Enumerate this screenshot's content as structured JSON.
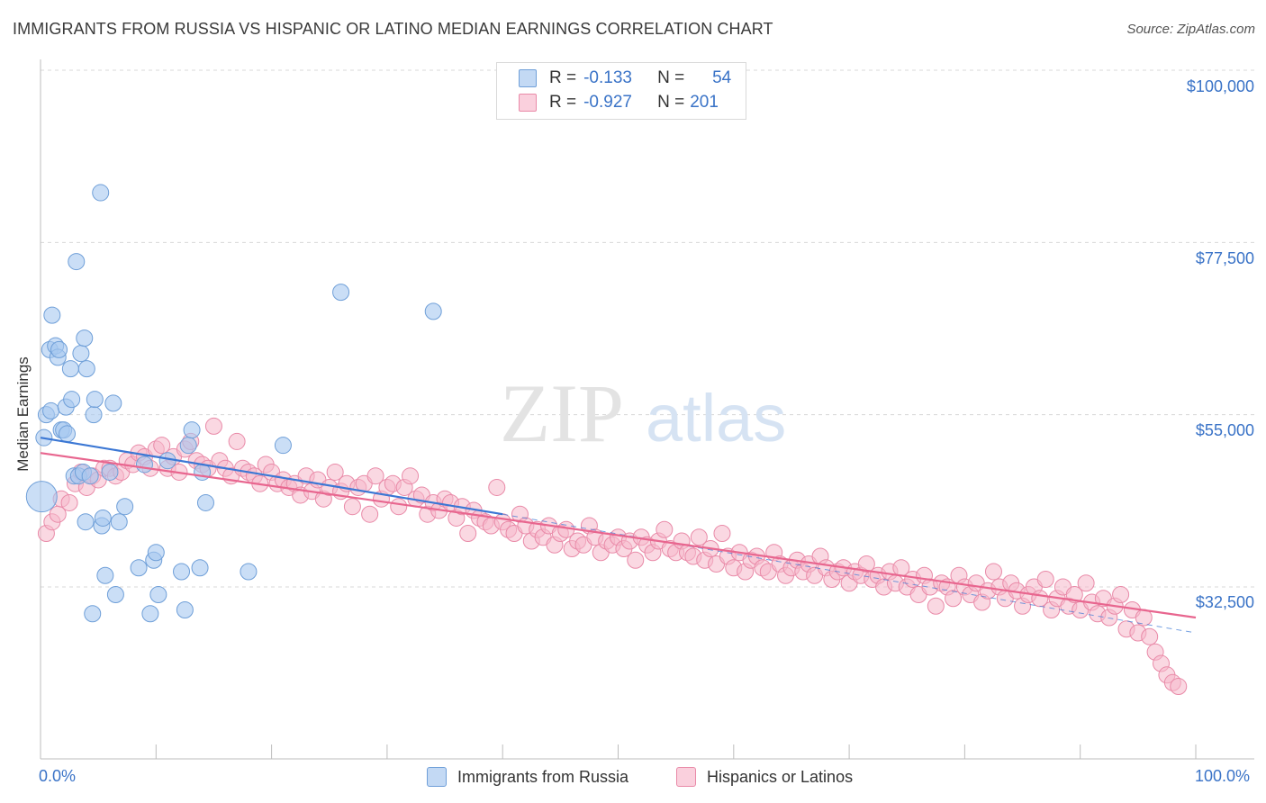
{
  "title": "IMMIGRANTS FROM RUSSIA VS HISPANIC OR LATINO MEDIAN EARNINGS CORRELATION CHART",
  "source": "Source: ZipAtlas.com",
  "watermark": {
    "zip": "ZIP",
    "atlas": "atlas"
  },
  "legend": {
    "rows": [
      {
        "r_label": "R =",
        "r_value": "-0.133",
        "n_label": "N =",
        "n_value": "54",
        "color": "#a7c8f0"
      },
      {
        "r_label": "R =",
        "r_value": "-0.927",
        "n_label": "N =",
        "n_value": "201",
        "color": "#f5b8cb"
      }
    ]
  },
  "colors": {
    "russia_fill": "#a7c8f0",
    "russia_stroke": "#6f9fd8",
    "russia_line": "#3b77d4",
    "hispanic_fill": "#f5b8cb",
    "hispanic_stroke": "#e98aa8",
    "hispanic_line": "#e8668f",
    "axis_text": "#3a73c7",
    "grid": "#d8d8d8"
  },
  "chart_data": {
    "type": "scatter",
    "title": "IMMIGRANTS FROM RUSSIA VS HISPANIC OR LATINO MEDIAN EARNINGS CORRELATION CHART",
    "xlabel": "",
    "ylabel": "Median Earnings",
    "xlim": [
      0,
      100
    ],
    "ylim": [
      12000,
      104000
    ],
    "x_tick_labels": [
      "0.0%",
      "100.0%"
    ],
    "y_ticks": [
      32500,
      55000,
      77500,
      100000
    ],
    "y_tick_labels": [
      "$32,500",
      "$55,000",
      "$77,500",
      "$100,000"
    ],
    "grid": true,
    "legend_position": "top-center",
    "series": [
      {
        "name": "Immigrants from Russia",
        "trend": {
          "x": [
            0,
            40
          ],
          "y": [
            52000,
            42000
          ],
          "dashed_extension_to": [
            100,
            26500
          ]
        },
        "points": [
          [
            0.1,
            44.3
          ],
          [
            0.3,
            52.0
          ],
          [
            0.5,
            55.0
          ],
          [
            0.8,
            63.5
          ],
          [
            0.9,
            55.5
          ],
          [
            1.0,
            68.0
          ],
          [
            1.3,
            64.0
          ],
          [
            1.5,
            62.5
          ],
          [
            1.6,
            63.5
          ],
          [
            1.8,
            53.0
          ],
          [
            2.0,
            53.0
          ],
          [
            2.2,
            56.0
          ],
          [
            2.3,
            52.5
          ],
          [
            2.6,
            61.0
          ],
          [
            2.7,
            57.0
          ],
          [
            2.9,
            47.0
          ],
          [
            3.1,
            75.0
          ],
          [
            3.3,
            47.0
          ],
          [
            3.5,
            63.0
          ],
          [
            3.7,
            47.5
          ],
          [
            3.8,
            65.0
          ],
          [
            3.9,
            41.0
          ],
          [
            4.0,
            61.0
          ],
          [
            4.3,
            47.0
          ],
          [
            4.5,
            29.0
          ],
          [
            4.6,
            55.0
          ],
          [
            4.7,
            57.0
          ],
          [
            5.2,
            84.0
          ],
          [
            5.3,
            40.5
          ],
          [
            5.4,
            41.5
          ],
          [
            5.6,
            34.0
          ],
          [
            6.3,
            56.5
          ],
          [
            6.5,
            31.5
          ],
          [
            6.8,
            41.0
          ],
          [
            7.3,
            43.0
          ],
          [
            8.5,
            35.0
          ],
          [
            9.0,
            48.5
          ],
          [
            9.5,
            29.0
          ],
          [
            9.8,
            36.0
          ],
          [
            10.0,
            37.0
          ],
          [
            10.2,
            31.5
          ],
          [
            12.2,
            34.5
          ],
          [
            12.5,
            29.5
          ],
          [
            12.8,
            51.0
          ],
          [
            13.1,
            53.0
          ],
          [
            14.0,
            47.5
          ],
          [
            13.8,
            35.0
          ],
          [
            14.3,
            43.5
          ],
          [
            18.0,
            34.5
          ],
          [
            21.0,
            51.0
          ],
          [
            26.0,
            71.0
          ],
          [
            34.0,
            68.5
          ],
          [
            6.0,
            47.5
          ],
          [
            11.0,
            49.0
          ]
        ]
      },
      {
        "name": "Hispanics or Latinos",
        "trend": {
          "x": [
            0,
            100
          ],
          "y": [
            50000,
            28500
          ]
        },
        "points": [
          [
            0.5,
            39.5
          ],
          [
            1.0,
            41.0
          ],
          [
            1.5,
            42.0
          ],
          [
            1.8,
            44.0
          ],
          [
            2.5,
            43.5
          ],
          [
            3.0,
            46.0
          ],
          [
            3.5,
            47.5
          ],
          [
            4.0,
            45.5
          ],
          [
            4.5,
            47.0
          ],
          [
            5.0,
            46.5
          ],
          [
            5.5,
            48.0
          ],
          [
            6.0,
            48.0
          ],
          [
            6.5,
            47.0
          ],
          [
            7.0,
            47.5
          ],
          [
            7.5,
            49.0
          ],
          [
            8.0,
            48.5
          ],
          [
            8.5,
            50.0
          ],
          [
            9.0,
            49.5
          ],
          [
            9.5,
            48.0
          ],
          [
            10.0,
            50.5
          ],
          [
            10.5,
            51.0
          ],
          [
            11.0,
            48.0
          ],
          [
            11.5,
            49.5
          ],
          [
            12.0,
            47.5
          ],
          [
            12.5,
            50.5
          ],
          [
            13.0,
            51.5
          ],
          [
            13.5,
            49.0
          ],
          [
            14.0,
            48.5
          ],
          [
            14.5,
            48.0
          ],
          [
            15.0,
            53.5
          ],
          [
            15.5,
            49.0
          ],
          [
            16.0,
            48.0
          ],
          [
            16.5,
            47.0
          ],
          [
            17.0,
            51.5
          ],
          [
            17.5,
            48.0
          ],
          [
            18.0,
            47.5
          ],
          [
            18.5,
            47.0
          ],
          [
            19.0,
            46.0
          ],
          [
            19.5,
            48.5
          ],
          [
            20.0,
            47.5
          ],
          [
            20.5,
            46.0
          ],
          [
            21.0,
            46.5
          ],
          [
            21.5,
            45.5
          ],
          [
            22.0,
            46.0
          ],
          [
            22.5,
            44.5
          ],
          [
            23.0,
            47.0
          ],
          [
            23.5,
            45.0
          ],
          [
            24.0,
            46.5
          ],
          [
            24.5,
            44.0
          ],
          [
            25.0,
            45.5
          ],
          [
            25.5,
            47.5
          ],
          [
            26.0,
            45.0
          ],
          [
            26.5,
            46.0
          ],
          [
            27.0,
            43.0
          ],
          [
            27.5,
            45.5
          ],
          [
            28.0,
            46.0
          ],
          [
            28.5,
            42.0
          ],
          [
            29.0,
            47.0
          ],
          [
            29.5,
            44.0
          ],
          [
            30.0,
            45.5
          ],
          [
            30.5,
            46.0
          ],
          [
            31.0,
            43.0
          ],
          [
            31.5,
            45.5
          ],
          [
            32.0,
            47.0
          ],
          [
            32.5,
            44.0
          ],
          [
            33.0,
            44.5
          ],
          [
            33.5,
            42.0
          ],
          [
            34.0,
            43.5
          ],
          [
            34.5,
            42.5
          ],
          [
            35.0,
            44.0
          ],
          [
            35.5,
            43.5
          ],
          [
            36.0,
            41.5
          ],
          [
            36.5,
            43.0
          ],
          [
            37.0,
            39.5
          ],
          [
            37.5,
            42.5
          ],
          [
            38.0,
            41.5
          ],
          [
            38.5,
            41.0
          ],
          [
            39.0,
            40.5
          ],
          [
            39.5,
            45.5
          ],
          [
            40.0,
            41.0
          ],
          [
            40.5,
            40.0
          ],
          [
            41.0,
            39.5
          ],
          [
            41.5,
            42.0
          ],
          [
            42.0,
            40.5
          ],
          [
            42.5,
            38.5
          ],
          [
            43.0,
            40.0
          ],
          [
            43.5,
            39.0
          ],
          [
            44.0,
            40.5
          ],
          [
            44.5,
            38.0
          ],
          [
            45.0,
            39.5
          ],
          [
            45.5,
            40.0
          ],
          [
            46.0,
            37.5
          ],
          [
            46.5,
            38.5
          ],
          [
            47.0,
            38.0
          ],
          [
            47.5,
            40.5
          ],
          [
            48.0,
            39.0
          ],
          [
            48.5,
            37.0
          ],
          [
            49.0,
            38.5
          ],
          [
            49.5,
            38.0
          ],
          [
            50.0,
            39.0
          ],
          [
            50.5,
            37.5
          ],
          [
            51.0,
            38.5
          ],
          [
            51.5,
            36.0
          ],
          [
            52.0,
            39.0
          ],
          [
            52.5,
            38.0
          ],
          [
            53.0,
            37.0
          ],
          [
            53.5,
            38.5
          ],
          [
            54.0,
            40.0
          ],
          [
            54.5,
            37.5
          ],
          [
            55.0,
            37.0
          ],
          [
            55.5,
            38.5
          ],
          [
            56.0,
            37.0
          ],
          [
            56.5,
            36.5
          ],
          [
            57.0,
            39.0
          ],
          [
            57.5,
            36.0
          ],
          [
            58.0,
            37.5
          ],
          [
            58.5,
            35.5
          ],
          [
            59.0,
            39.5
          ],
          [
            59.5,
            36.5
          ],
          [
            60.0,
            35.0
          ],
          [
            60.5,
            37.0
          ],
          [
            61.0,
            34.5
          ],
          [
            61.5,
            36.0
          ],
          [
            62.0,
            36.5
          ],
          [
            62.5,
            35.0
          ],
          [
            63.0,
            34.5
          ],
          [
            63.5,
            37.0
          ],
          [
            64.0,
            35.5
          ],
          [
            64.5,
            34.0
          ],
          [
            65.0,
            35.0
          ],
          [
            65.5,
            36.0
          ],
          [
            66.0,
            34.5
          ],
          [
            66.5,
            35.5
          ],
          [
            67.0,
            34.0
          ],
          [
            67.5,
            36.5
          ],
          [
            68.0,
            35.0
          ],
          [
            68.5,
            33.5
          ],
          [
            69.0,
            34.5
          ],
          [
            69.5,
            35.0
          ],
          [
            70.0,
            33.0
          ],
          [
            70.5,
            34.5
          ],
          [
            71.0,
            34.0
          ],
          [
            71.5,
            35.5
          ],
          [
            72.0,
            33.5
          ],
          [
            72.5,
            34.0
          ],
          [
            73.0,
            32.5
          ],
          [
            73.5,
            34.5
          ],
          [
            74.0,
            33.0
          ],
          [
            74.5,
            35.0
          ],
          [
            75.0,
            32.5
          ],
          [
            75.5,
            33.5
          ],
          [
            76.0,
            31.5
          ],
          [
            76.5,
            34.0
          ],
          [
            77.0,
            32.5
          ],
          [
            77.5,
            30.0
          ],
          [
            78.0,
            33.0
          ],
          [
            78.5,
            32.5
          ],
          [
            79.0,
            31.0
          ],
          [
            79.5,
            34.0
          ],
          [
            80.0,
            32.5
          ],
          [
            80.5,
            31.5
          ],
          [
            81.0,
            33.0
          ],
          [
            81.5,
            30.5
          ],
          [
            82.0,
            32.0
          ],
          [
            82.5,
            34.5
          ],
          [
            83.0,
            32.5
          ],
          [
            83.5,
            31.0
          ],
          [
            84.0,
            33.0
          ],
          [
            84.5,
            32.0
          ],
          [
            85.0,
            30.0
          ],
          [
            85.5,
            31.5
          ],
          [
            86.0,
            32.5
          ],
          [
            86.5,
            31.0
          ],
          [
            87.0,
            33.5
          ],
          [
            87.5,
            29.5
          ],
          [
            88.0,
            31.0
          ],
          [
            88.5,
            32.5
          ],
          [
            89.0,
            30.0
          ],
          [
            89.5,
            31.5
          ],
          [
            90.0,
            29.5
          ],
          [
            90.5,
            33.0
          ],
          [
            91.0,
            30.5
          ],
          [
            91.5,
            29.0
          ],
          [
            92.0,
            31.0
          ],
          [
            92.5,
            28.5
          ],
          [
            93.0,
            30.0
          ],
          [
            93.5,
            31.5
          ],
          [
            94.0,
            27.0
          ],
          [
            94.5,
            29.5
          ],
          [
            95.0,
            26.5
          ],
          [
            95.5,
            28.5
          ],
          [
            96.0,
            26.0
          ],
          [
            96.5,
            24.0
          ],
          [
            97.0,
            22.5
          ],
          [
            97.5,
            21.0
          ],
          [
            98.0,
            20.0
          ],
          [
            98.5,
            19.5
          ]
        ]
      }
    ]
  },
  "bottom_legend": [
    "Immigrants from Russia",
    "Hispanics or Latinos"
  ],
  "x_axis_labels": {
    "left": "0.0%",
    "right": "100.0%"
  }
}
